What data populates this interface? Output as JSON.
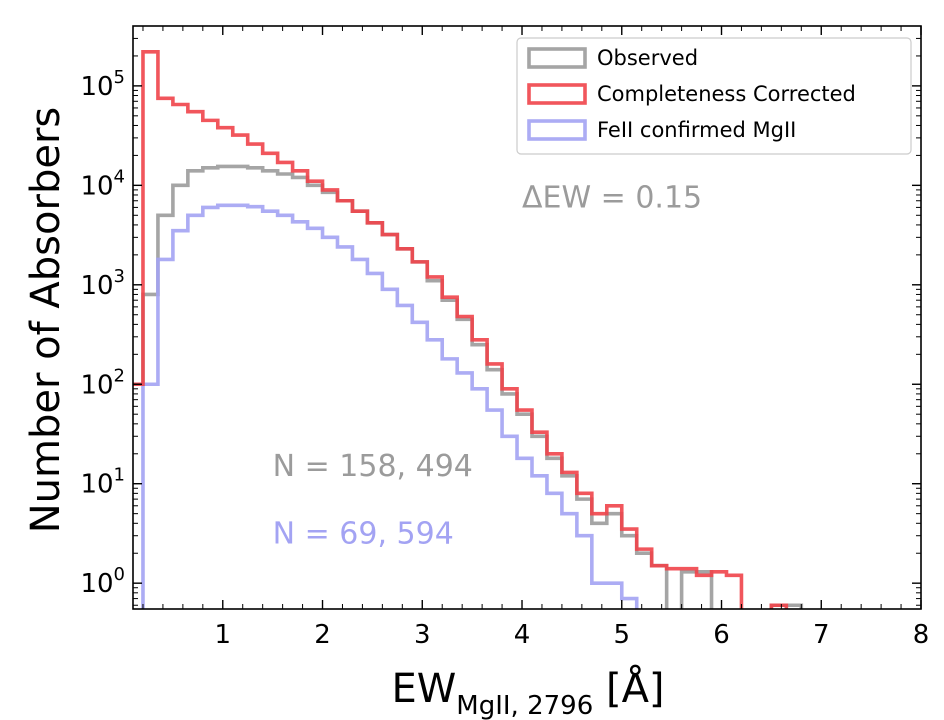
{
  "chart_data": {
    "type": "histogram",
    "scale": {
      "x": "linear",
      "y": "log"
    },
    "xlim": [
      0.1,
      8
    ],
    "ylim": [
      0.55,
      400000
    ],
    "xticks": [
      1,
      2,
      3,
      4,
      5,
      6,
      7,
      8
    ],
    "yticks": [
      {
        "value": 1,
        "base": "10",
        "exp": "0"
      },
      {
        "value": 10,
        "base": "10",
        "exp": "1"
      },
      {
        "value": 100,
        "base": "10",
        "exp": "2"
      },
      {
        "value": 1000,
        "base": "10",
        "exp": "3"
      },
      {
        "value": 10000,
        "base": "10",
        "exp": "4"
      },
      {
        "value": 100000,
        "base": "10",
        "exp": "5"
      }
    ],
    "xlabel": {
      "main": "EW",
      "sub": "MgII, 2796",
      "unit": " [Å]"
    },
    "ylabel": "Number of Absorbers",
    "legend_position": "top-right",
    "bin_width": 0.15,
    "bin_start": 0.05,
    "series": [
      {
        "name": "Observed",
        "color": "#9b9b9b",
        "counts": [
          100,
          800,
          5000,
          10000,
          14000,
          15000,
          15500,
          15500,
          15000,
          14000,
          13000,
          12000,
          10000,
          8500,
          7000,
          5500,
          4200,
          3200,
          2300,
          1700,
          1100,
          700,
          450,
          250,
          140,
          80,
          50,
          30,
          18,
          12,
          7,
          4,
          5,
          3,
          2,
          1.5,
          0.3,
          1.3,
          1.3,
          0.3,
          0.3,
          0.3,
          0.5,
          0.6,
          0.6,
          0.5,
          0.3,
          0.3,
          0.3,
          0.3,
          0.3,
          0.3,
          0.3,
          0.3,
          0.3,
          0.3,
          0.3,
          0.3,
          0.3,
          0.3,
          0.3,
          0.3,
          0.3,
          0.3,
          0.3,
          0.3,
          0.3,
          0.3,
          0.3,
          0.3,
          0.3,
          0.3,
          0.3,
          0.3,
          0.3,
          0.3,
          0.3,
          0.3,
          0.3,
          0.3,
          0.3,
          0.3,
          0.3,
          0.3,
          0.3,
          0.3,
          0.3,
          0.3,
          0.3,
          0.3,
          0.3,
          0.3,
          0.3,
          0.3,
          0.3,
          0.3,
          0.3,
          0.3,
          0.3,
          0.3,
          0.3,
          0.3,
          0.3,
          0.3,
          0.3,
          0.3,
          0.3,
          0.3,
          0.3,
          0.3,
          0.3,
          0.3,
          0.3,
          0.3,
          0.3,
          0.3,
          0.3,
          0.3
        ]
      },
      {
        "name": "Completeness Corrected",
        "color": "#f0444a",
        "counts": [
          100,
          220000,
          75000,
          65000,
          55000,
          45000,
          38000,
          32000,
          26000,
          21000,
          17000,
          14000,
          11000,
          9000,
          7000,
          5500,
          4200,
          3200,
          2300,
          1700,
          1200,
          750,
          480,
          280,
          160,
          90,
          55,
          33,
          20,
          13,
          8,
          5,
          6,
          3.5,
          2.2,
          1.5,
          1.4,
          1.4,
          1.2,
          1.3,
          1.2,
          0.3,
          0.4,
          0.6,
          0.3,
          0.3,
          0.3,
          0.3,
          0.3,
          0.3,
          0.3,
          0.3,
          0.3,
          0.3,
          0.3,
          0.3,
          0.3,
          0.3,
          0.3,
          0.3,
          0.3,
          0.3,
          0.3,
          0.3,
          0.3,
          0.3,
          0.3,
          0.3,
          0.3,
          0.3,
          0.3,
          0.3,
          0.3,
          0.3,
          0.3,
          0.3,
          0.3,
          0.3,
          0.3,
          0.3,
          0.3,
          0.3,
          0.3,
          0.3,
          0.3,
          0.3,
          0.3,
          0.3,
          0.3,
          0.3,
          0.3,
          0.3,
          0.3,
          0.3,
          0.3,
          0.3,
          0.3,
          0.3,
          0.3,
          0.3,
          0.3,
          0.3,
          0.3,
          0.3,
          0.3,
          0.3,
          0.3,
          0.3,
          0.3,
          0.3,
          0.3,
          0.3,
          0.3,
          0.3,
          0.3,
          0.3,
          0.3,
          0.3
        ]
      },
      {
        "name": "FeII confirmed MgII",
        "color": "#a3a3f3",
        "counts": [
          0.3,
          100,
          1800,
          3500,
          5000,
          6000,
          6300,
          6300,
          6100,
          5500,
          5000,
          4300,
          3700,
          3000,
          2400,
          1800,
          1300,
          900,
          620,
          420,
          280,
          180,
          130,
          90,
          55,
          30,
          18,
          12,
          8,
          5,
          3,
          1,
          1,
          0.7,
          0.4,
          0.3,
          0.3,
          0.3,
          0.3,
          0.3,
          0.3,
          0.3,
          0.3,
          0.3,
          0.3,
          0.3,
          0.3,
          0.3,
          0.3,
          0.3,
          0.3,
          0.3,
          0.3,
          0.3,
          0.3,
          0.3,
          0.3,
          0.3,
          0.3,
          0.3,
          0.3,
          0.3,
          0.3,
          0.3,
          0.3,
          0.3,
          0.3,
          0.3,
          0.3,
          0.3,
          0.3,
          0.3,
          0.3,
          0.3,
          0.3,
          0.3,
          0.3,
          0.3,
          0.3,
          0.3,
          0.3,
          0.3,
          0.3,
          0.3,
          0.3,
          0.3,
          0.3,
          0.3,
          0.3,
          0.3,
          0.3,
          0.3,
          0.3,
          0.3,
          0.3,
          0.3,
          0.3,
          0.3,
          0.3,
          0.3,
          0.3,
          0.3,
          0.3,
          0.3,
          0.3,
          0.3,
          0.3,
          0.3,
          0.3,
          0.3,
          0.3,
          0.3,
          0.3,
          0.3,
          0.3,
          0.3,
          0.3,
          0.3
        ]
      }
    ],
    "annotations": [
      {
        "text": "ΔEW = 0.15",
        "color": "#9b9b9b",
        "x": 4.0,
        "y": 6000
      },
      {
        "text": "N = 158, 494",
        "color": "#9b9b9b",
        "x": 1.5,
        "y": 12
      },
      {
        "text": "N = 69, 594",
        "color": "#a3a3f3",
        "x": 1.5,
        "y": 2.5
      }
    ]
  }
}
